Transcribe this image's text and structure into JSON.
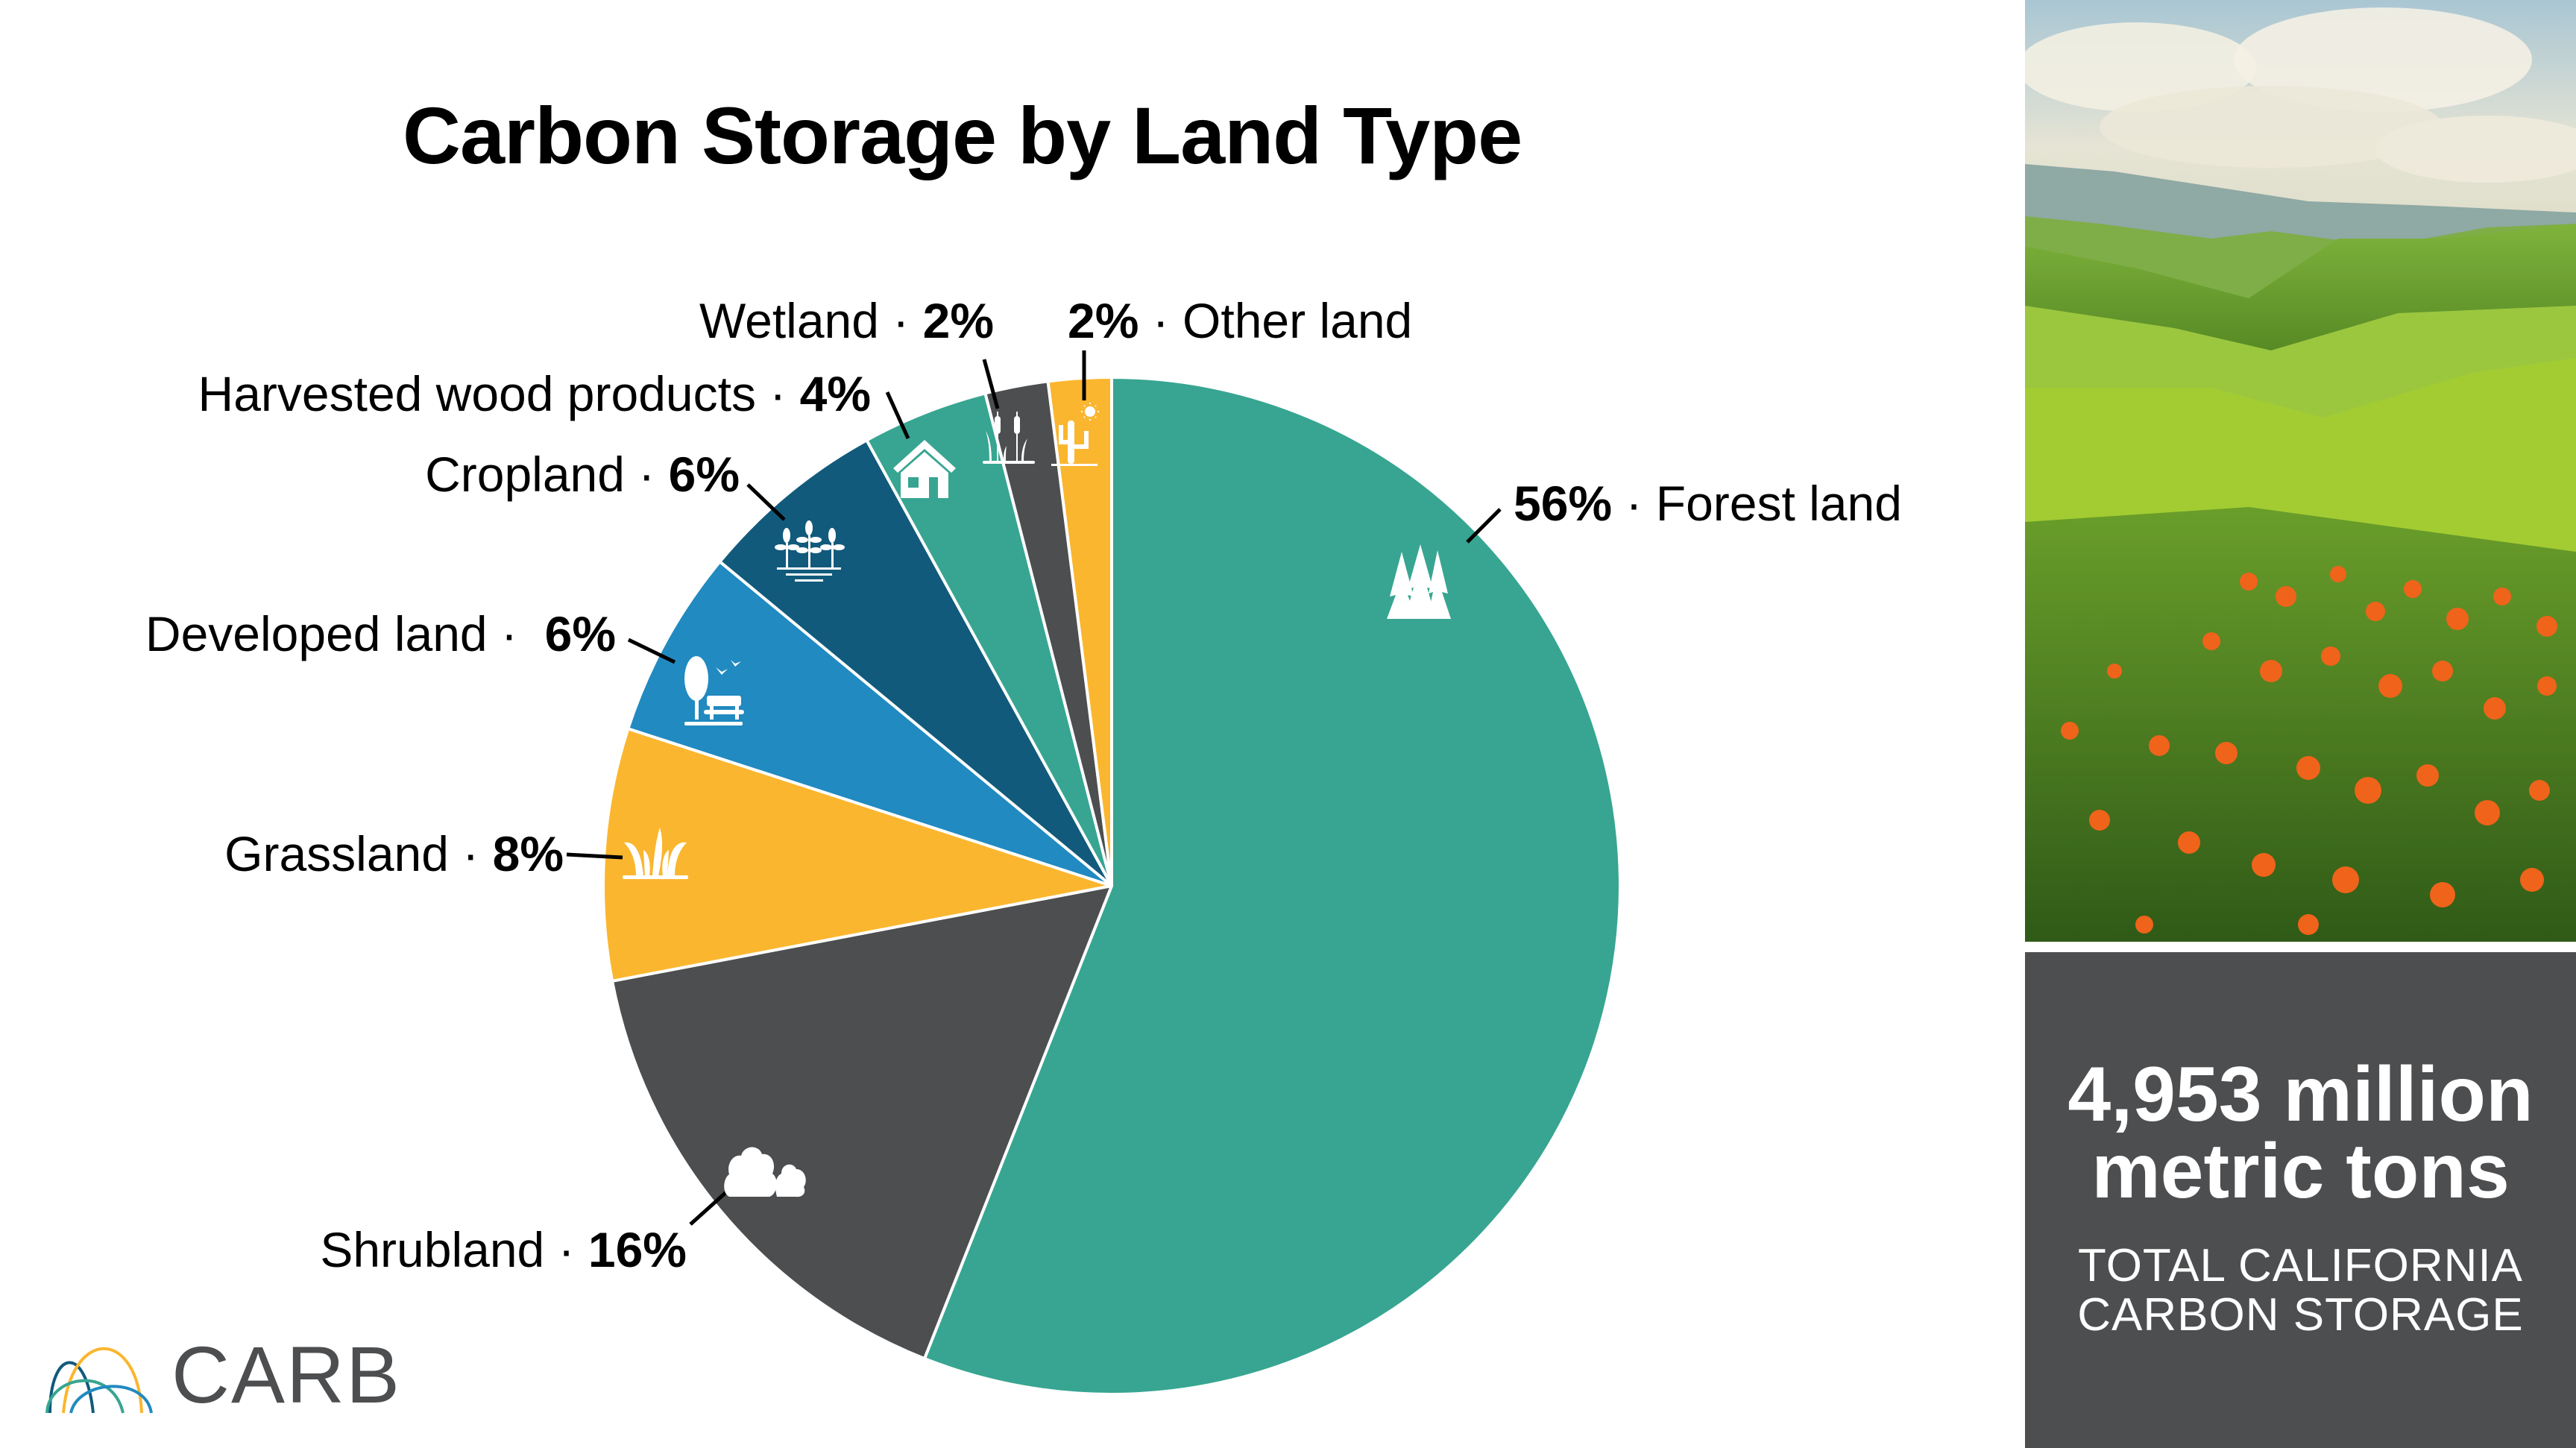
{
  "title": "Carbon Storage by Land Type",
  "chart_data": {
    "type": "pie",
    "title": "Carbon Storage by Land Type",
    "categories": [
      "Forest land",
      "Shrubland",
      "Grassland",
      "Developed land",
      "Cropland",
      "Harvested wood products",
      "Wetland",
      "Other land"
    ],
    "values": [
      56,
      16,
      8,
      6,
      6,
      4,
      2,
      2
    ],
    "unit": "%",
    "colors": [
      "#37a592",
      "#4d4e50",
      "#fbb62f",
      "#218ac0",
      "#115a7c",
      "#37a592",
      "#4d4e50",
      "#fbb62f"
    ],
    "icons": [
      "trees-icon",
      "shrubs-icon",
      "grass-icon",
      "park-bench-icon",
      "crops-icon",
      "house-icon",
      "cattails-icon",
      "cactus-sun-icon"
    ],
    "start_angle_deg": 0,
    "direction": "clockwise",
    "total": "4,953 million metric tons"
  },
  "labels": {
    "forest": {
      "pct": "56%",
      "sep": " · ",
      "name": "Forest land"
    },
    "shrub": {
      "name": "Shrubland",
      "sep": " · ",
      "pct": "16%"
    },
    "grass": {
      "name": "Grassland",
      "sep": " · ",
      "pct": "8%"
    },
    "developed": {
      "name": "Developed land",
      "sep": " ·  ",
      "pct": "6%"
    },
    "crop": {
      "name": "Cropland",
      "sep": " · ",
      "pct": "6%"
    },
    "hwp": {
      "name": "Harvested wood products",
      "sep": " · ",
      "pct": "4%"
    },
    "wetland": {
      "name": "Wetland",
      "sep": " · ",
      "pct": "2%"
    },
    "other": {
      "pct": "2%",
      "sep": " · ",
      "name": "Other land"
    }
  },
  "stat": {
    "value_line1": "4,953 million",
    "value_line2": "metric tons",
    "caption_line1": "TOTAL CALIFORNIA",
    "caption_line2": "CARBON STORAGE"
  },
  "logo": {
    "text": "CARB"
  },
  "colors": {
    "teal": "#37a592",
    "dark_gray": "#4d4e50",
    "yellow": "#fbb62f",
    "blue": "#218ac0",
    "dark_blue": "#115a7c"
  }
}
